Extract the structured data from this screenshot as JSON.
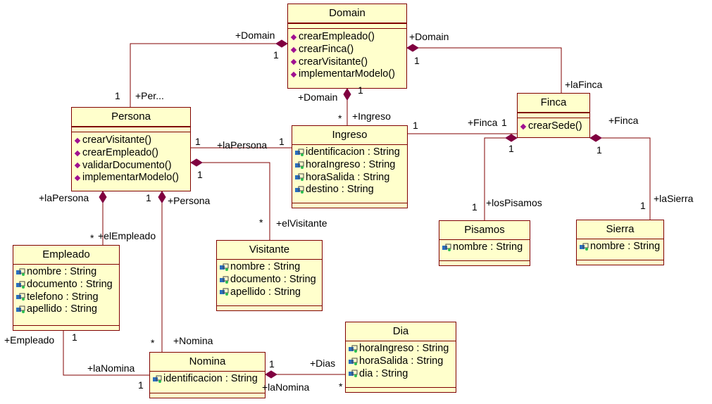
{
  "classes": {
    "domain": {
      "name": "Domain",
      "operations": [
        "crearEmpleado()",
        "crearFinca()",
        "crearVisitante()",
        "implementarModelo()"
      ]
    },
    "persona": {
      "name": "Persona",
      "operations": [
        "crearVisitante()",
        "crearEmpleado()",
        "validarDocumento()",
        "implementarModelo()"
      ]
    },
    "ingreso": {
      "name": "Ingreso",
      "attributes": [
        "identificacion : String",
        "horaIngreso : String",
        "horaSalida : String",
        "destino : String"
      ]
    },
    "finca": {
      "name": "Finca",
      "operations": [
        "crearSede()"
      ]
    },
    "empleado": {
      "name": "Empleado",
      "attributes": [
        "nombre : String",
        "documento : String",
        "telefono : String",
        "apellido : String"
      ]
    },
    "visitante": {
      "name": "Visitante",
      "attributes": [
        "nombre : String",
        "documento : String",
        "apellido : String"
      ]
    },
    "pisamos": {
      "name": "Pisamos",
      "attributes": [
        "nombre : String"
      ]
    },
    "sierra": {
      "name": "Sierra",
      "attributes": [
        "nombre : String"
      ]
    },
    "nomina": {
      "name": "Nomina",
      "attributes": [
        "identificacion : String"
      ]
    },
    "dia": {
      "name": "Dia",
      "attributes": [
        "horaIngreso : String",
        "horaSalida : String",
        "dia : String"
      ]
    }
  },
  "labels": {
    "domain_role_left": "+Domain",
    "domain_mult_left": "1",
    "domain_role_right": "+Domain",
    "domain_mult_right": "1",
    "persona_role_top": "+Per...",
    "persona_mult_top": "1",
    "domain_role_bottom": "+Domain",
    "domain_mult_bottom": "1",
    "ingreso_mult_top": "*",
    "ingreso_role_top": "+Ingreso",
    "finca_role_top": "+laFinca",
    "persona_mult_right": "1",
    "lapersona_role": "+laPersona",
    "ingreso_mult_left": "1",
    "ingreso_mult_right": "1",
    "finca_role_left": "+Finca",
    "finca_mult_left": "1",
    "finca_role_right": "+Finca",
    "finca_mult_pisamos": "1",
    "finca_mult_sierra": "1",
    "pisamos_mult": "1",
    "pisamos_role": "+losPisamos",
    "sierra_mult": "1",
    "sierra_role": "+laSierra",
    "persona_role_left": "+laPersona",
    "persona_mult_bottom": "1",
    "persona_mult_visitante": "1",
    "persona_role_nomina": "+Persona",
    "empleado_mult": "*",
    "empleado_role": "+elEmpleado",
    "visitante_mult": "*",
    "visitante_role": "+elVisitante",
    "empleado_role_bottom": "+Empleado",
    "empleado_mult_bottom": "1",
    "nomina_mult_top": "*",
    "nomina_role_top": "+Nomina",
    "lanomina_role_left": "+laNomina",
    "nomina_mult_left": "1",
    "nomina_mult_right": "1",
    "dias_role": "+Dias",
    "lanomina_role_right": "+laNomina",
    "dia_mult": "*"
  },
  "colors": {
    "border": "#800000",
    "fill": "#ffffcc",
    "diamond": "#800040",
    "op_icon": "#a01090",
    "attr_icon": "#2b6fbf"
  }
}
